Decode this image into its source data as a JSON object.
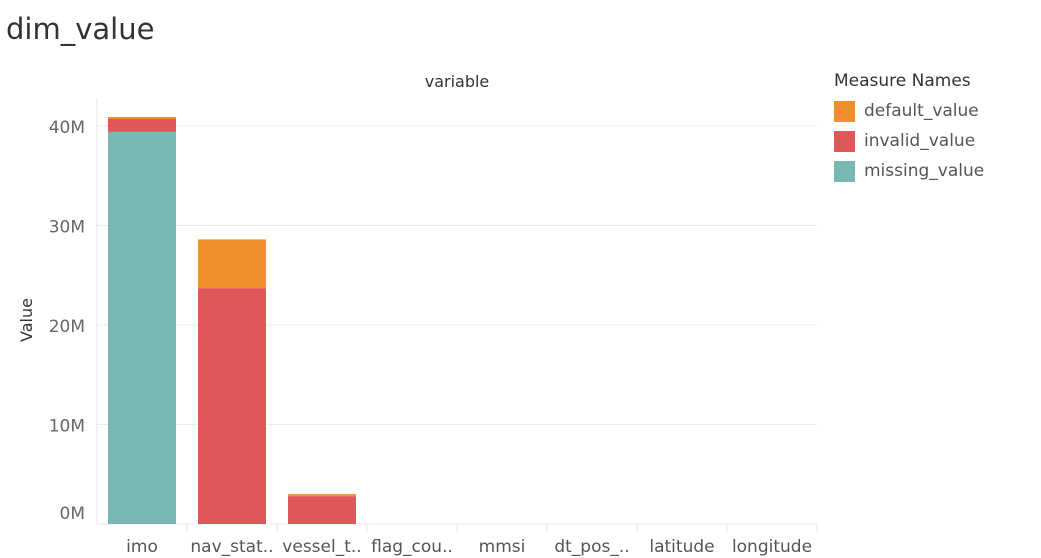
{
  "sheet": {
    "title": "dim_value"
  },
  "chart_data": {
    "type": "bar",
    "stacked": true,
    "title": "",
    "column_header": "variable",
    "xlabel": "",
    "ylabel": "Value",
    "categories": [
      "imo",
      "nav_stat..",
      "vessel_t..",
      "flag_cou..",
      "mmsi",
      "dt_pos_..",
      "latitude",
      "longitude"
    ],
    "ylim": [
      0,
      41000000
    ],
    "yticks": [
      0,
      10000000,
      20000000,
      30000000,
      40000000
    ],
    "ytick_labels": [
      "0M",
      "10M",
      "20M",
      "30M",
      "40M"
    ],
    "series": [
      {
        "name": "missing_value",
        "color": "#79b7b2",
        "values": [
          39400000,
          0,
          0,
          0,
          0,
          0,
          0,
          0
        ]
      },
      {
        "name": "invalid_value",
        "color": "#e15759",
        "values": [
          1300000,
          23700000,
          2800000,
          0,
          0,
          0,
          0,
          0
        ]
      },
      {
        "name": "default_value",
        "color": "#f28e2b",
        "values": [
          200000,
          4900000,
          200000,
          0,
          0,
          0,
          0,
          0
        ]
      }
    ],
    "grid": true,
    "legend": {
      "title": "Measure Names",
      "position": "right",
      "items": [
        {
          "label": "default_value",
          "color": "#f28e2b"
        },
        {
          "label": "invalid_value",
          "color": "#e15759"
        },
        {
          "label": "missing_value",
          "color": "#79b7b2"
        }
      ]
    }
  }
}
